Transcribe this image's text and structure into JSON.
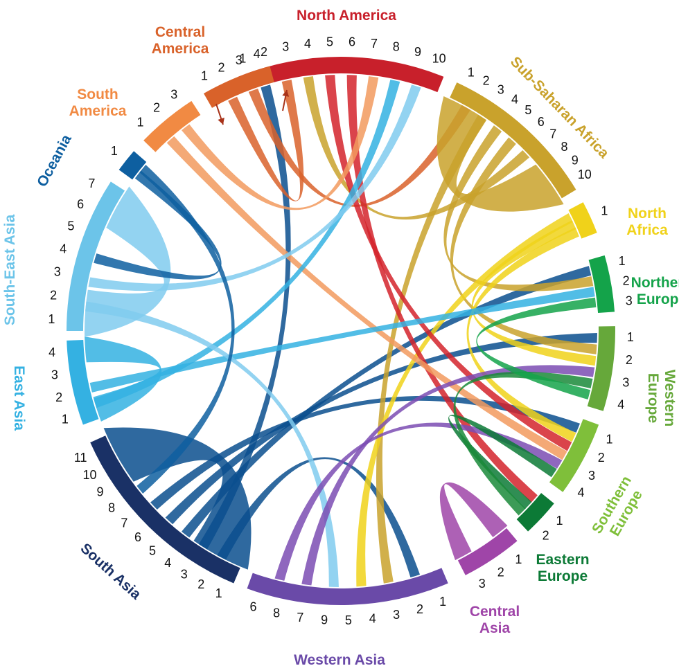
{
  "diagram": {
    "regions": [
      {
        "id": "north-america",
        "label_lines": [
          "North America"
        ],
        "color": "#c8202b",
        "ticks": [
          "1",
          "2",
          "3",
          "4",
          "5",
          "6",
          "7",
          "8",
          "9",
          "10"
        ]
      },
      {
        "id": "sub-saharan-africa",
        "label_lines": [
          "Sub-Saharan Africa"
        ],
        "color": "#c9a22c",
        "ticks": [
          "1",
          "2",
          "3",
          "4",
          "5",
          "6",
          "7",
          "8",
          "9",
          "10"
        ]
      },
      {
        "id": "north-africa",
        "label_lines": [
          "North",
          "Africa"
        ],
        "color": "#f0d21a",
        "ticks": [
          "1"
        ]
      },
      {
        "id": "northern-europe",
        "label_lines": [
          "Northern",
          "Europe"
        ],
        "color": "#14a34a",
        "ticks": [
          "1",
          "2",
          "3"
        ]
      },
      {
        "id": "western-europe",
        "label_lines": [
          "Western",
          "Europe"
        ],
        "color": "#66a83a",
        "ticks": [
          "1",
          "2",
          "3",
          "4"
        ]
      },
      {
        "id": "southern-europe",
        "label_lines": [
          "Southern",
          "Europe"
        ],
        "color": "#7fbf3a",
        "ticks": [
          "1",
          "2",
          "3",
          "4"
        ]
      },
      {
        "id": "eastern-europe",
        "label_lines": [
          "Eastern",
          "Europe"
        ],
        "color": "#0c7a36",
        "ticks": [
          "1",
          "2"
        ]
      },
      {
        "id": "central-asia",
        "label_lines": [
          "Central",
          "Asia"
        ],
        "color": "#9f45a8",
        "ticks": [
          "1",
          "2",
          "3"
        ]
      },
      {
        "id": "western-asia",
        "label_lines": [
          "Western Asia"
        ],
        "color": "#6a4aa8",
        "ticks": [
          "1",
          "2",
          "3",
          "4",
          "5",
          "9",
          "7",
          "8",
          "6"
        ]
      },
      {
        "id": "south-asia",
        "label_lines": [
          "South Asia"
        ],
        "color": "#1a3166",
        "ticks": [
          "1",
          "2",
          "3",
          "4",
          "5",
          "6",
          "7",
          "8",
          "9",
          "10",
          "11"
        ]
      },
      {
        "id": "east-asia",
        "label_lines": [
          "East Asia"
        ],
        "color": "#34b1e2",
        "ticks": [
          "1",
          "2",
          "3",
          "4"
        ]
      },
      {
        "id": "south-east-asia",
        "label_lines": [
          "South-East Asia"
        ],
        "color": "#6cc4e9",
        "ticks": [
          "1",
          "2",
          "3",
          "4",
          "5",
          "6",
          "7"
        ]
      },
      {
        "id": "oceania",
        "label_lines": [
          "Oceania"
        ],
        "color": "#0e5fa0",
        "ticks": [
          "1"
        ]
      },
      {
        "id": "south-america",
        "label_lines": [
          "South",
          "America"
        ],
        "color": "#f18a43",
        "ticks": [
          "1",
          "2",
          "3"
        ]
      },
      {
        "id": "central-america",
        "label_lines": [
          "Central",
          "America"
        ],
        "color": "#d9622a",
        "ticks": [
          "1",
          "2",
          "3",
          "4"
        ]
      }
    ],
    "flows": [
      {
        "from": "south-asia",
        "to": "western-asia",
        "color": "#0b4f8e"
      },
      {
        "from": "south-asia",
        "to": "north-america",
        "color": "#0b4f8e"
      },
      {
        "from": "south-asia",
        "to": "south-asia",
        "color": "#0b4f8e"
      },
      {
        "from": "south-asia",
        "to": "northern-europe",
        "color": "#0b4f8e"
      },
      {
        "from": "south-asia",
        "to": "western-europe",
        "color": "#0b4f8e"
      },
      {
        "from": "south-asia",
        "to": "southern-europe",
        "color": "#0b4f8e"
      },
      {
        "from": "central-america",
        "to": "north-america",
        "color": "#d9622a"
      },
      {
        "from": "central-america",
        "to": "sub-saharan-africa",
        "color": "#d9622a"
      },
      {
        "from": "sub-saharan-africa",
        "to": "sub-saharan-africa",
        "color": "#c9a22c"
      },
      {
        "from": "sub-saharan-africa",
        "to": "western-asia",
        "color": "#c9a22c"
      },
      {
        "from": "sub-saharan-africa",
        "to": "northern-europe",
        "color": "#c9a22c"
      },
      {
        "from": "sub-saharan-africa",
        "to": "western-europe",
        "color": "#c9a22c"
      },
      {
        "from": "sub-saharan-africa",
        "to": "north-america",
        "color": "#c9a22c"
      },
      {
        "from": "north-africa",
        "to": "western-asia",
        "color": "#f0d21a"
      },
      {
        "from": "north-africa",
        "to": "western-europe",
        "color": "#f0d21a"
      },
      {
        "from": "north-africa",
        "to": "southern-europe",
        "color": "#f0d21a"
      },
      {
        "from": "north-america",
        "to": "southern-europe",
        "color": "#d4232b"
      },
      {
        "from": "north-america",
        "to": "eastern-europe",
        "color": "#d4232b"
      },
      {
        "from": "south-america",
        "to": "southern-europe",
        "color": "#f29a5e"
      },
      {
        "from": "south-america",
        "to": "north-america",
        "color": "#f29a5e"
      },
      {
        "from": "east-asia",
        "to": "north-america",
        "color": "#34b1e2"
      },
      {
        "from": "east-asia",
        "to": "northern-europe",
        "color": "#34b1e2"
      },
      {
        "from": "east-asia",
        "to": "east-asia",
        "color": "#34b1e2"
      },
      {
        "from": "south-east-asia",
        "to": "south-east-asia",
        "color": "#80cbee"
      },
      {
        "from": "south-east-asia",
        "to": "western-asia",
        "color": "#80cbee"
      },
      {
        "from": "south-east-asia",
        "to": "north-america",
        "color": "#80cbee"
      },
      {
        "from": "oceania",
        "to": "south-east-asia",
        "color": "#0e5fa0"
      },
      {
        "from": "oceania",
        "to": "south-asia",
        "color": "#0e5fa0"
      },
      {
        "from": "western-asia",
        "to": "western-europe",
        "color": "#7b4cb3"
      },
      {
        "from": "western-asia",
        "to": "southern-europe",
        "color": "#7b4cb3"
      },
      {
        "from": "central-asia",
        "to": "central-asia",
        "color": "#9f45a8"
      },
      {
        "from": "eastern-europe",
        "to": "southern-europe",
        "color": "#0c7a36"
      },
      {
        "from": "eastern-europe",
        "to": "western-europe",
        "color": "#1a8a3a"
      },
      {
        "from": "northern-europe",
        "to": "western-europe",
        "color": "#14a34a"
      }
    ]
  }
}
